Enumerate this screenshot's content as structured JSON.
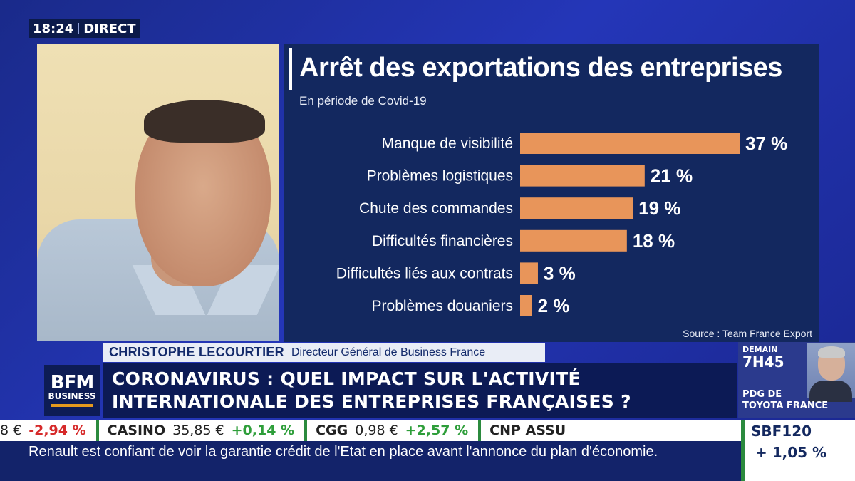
{
  "topbar": {
    "time": "18:24",
    "live_label": "DIRECT"
  },
  "chart_data": {
    "type": "bar",
    "orientation": "horizontal",
    "title": "Arrêt des exportations des entreprises",
    "subtitle": "En période de Covid-19",
    "source": "Source : Team France Export",
    "categories": [
      "Manque de visibilité",
      "Problèmes logistiques",
      "Chute des commandes",
      "Difficultés financières",
      "Difficultés liés aux contrats",
      "Problèmes douaniers"
    ],
    "values": [
      37,
      21,
      19,
      18,
      3,
      2
    ],
    "value_labels": [
      "37 %",
      "21 %",
      "19 %",
      "18 %",
      "3 %",
      "2 %"
    ],
    "unit": "%",
    "xlim": [
      0,
      37
    ],
    "bar_color": "#e8955a",
    "grid": false
  },
  "lower_third": {
    "name": "CHRISTOPHE LECOURTIER",
    "role": "Directeur Général de Business France",
    "headline_line1": "CORONAVIRUS : QUEL IMPACT SUR L'ACTIVITÉ",
    "headline_line2": "INTERNATIONALE DES ENTREPRISES FRANÇAISES ?"
  },
  "logo": {
    "line1": "BFM",
    "line2": "BUSINESS",
    "accent_color": "#e59a1e"
  },
  "up_next": {
    "day": "DEMAIN",
    "time": "7H45",
    "line1": "PDG DE",
    "line2": "TOYOTA FRANCE"
  },
  "ticker": [
    {
      "symbol": "",
      "price": "8 €",
      "change": "-2,94 %",
      "direction": "down"
    },
    {
      "symbol": "CASINO",
      "price": "35,85 €",
      "change": "+0,14 %",
      "direction": "up"
    },
    {
      "symbol": "CGG",
      "price": "0,98 €",
      "change": "+2,57 %",
      "direction": "up"
    },
    {
      "symbol": "CNP ASSU",
      "price": "",
      "change": "",
      "direction": "up"
    }
  ],
  "index": {
    "name": "SBF120",
    "value": "+ 1,05 %"
  },
  "news_crawl": "Renault est confiant de voir la garantie crédit de l'Etat en place avant l'annonce du plan d'économie."
}
